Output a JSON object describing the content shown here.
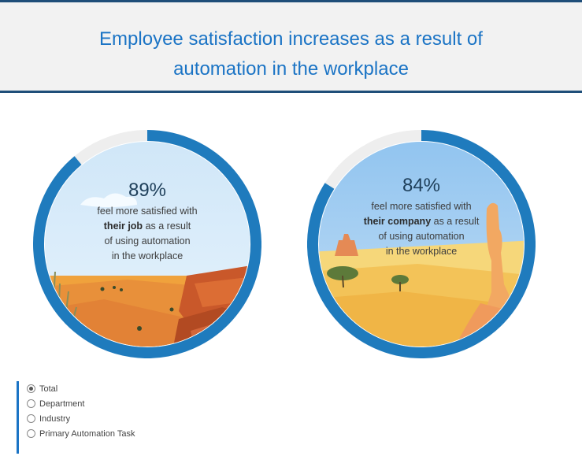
{
  "header": {
    "title_line1": "Employee satisfaction increases as a result of",
    "title_line2": "automation in the workplace"
  },
  "chart_data": [
    {
      "type": "pie",
      "values": [
        89,
        11
      ],
      "value_label": "89%",
      "text_pre": "feel more satisfied with",
      "text_bold": "their job",
      "text_post": "as a result",
      "text_line3": "of using automation",
      "text_line4": "in the workplace",
      "colors": {
        "fill": "#1f7bbd",
        "rest": "#eeeeee"
      }
    },
    {
      "type": "pie",
      "values": [
        84,
        16
      ],
      "value_label": "84%",
      "text_pre": "feel more satisfied with",
      "text_bold": "their company",
      "text_post": "as a result",
      "text_line3": "of using automation",
      "text_line4": "in the workplace",
      "colors": {
        "fill": "#1f7bbd",
        "rest": "#eeeeee"
      }
    }
  ],
  "filter": {
    "options": [
      {
        "label": "Total",
        "selected": true
      },
      {
        "label": "Department",
        "selected": false
      },
      {
        "label": "Industry",
        "selected": false
      },
      {
        "label": "Primary Automation Task",
        "selected": false
      }
    ]
  }
}
